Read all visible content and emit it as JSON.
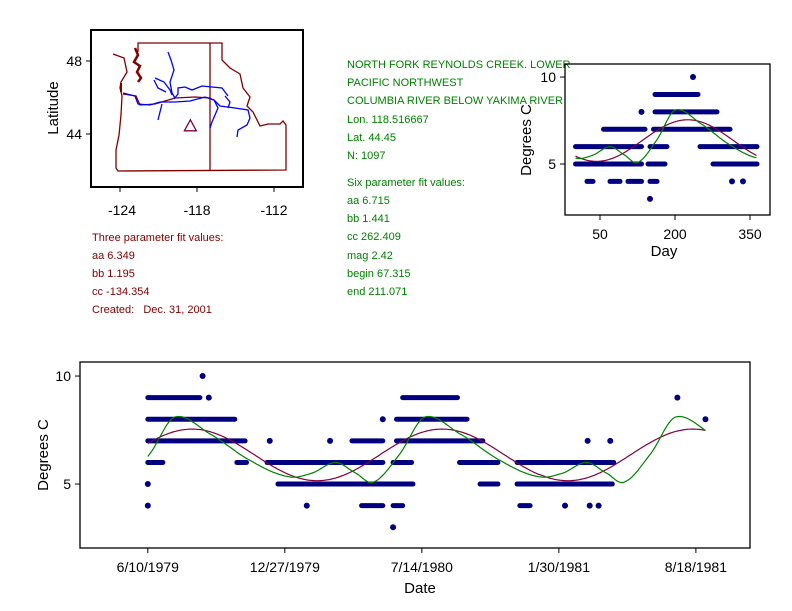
{
  "colors": {
    "observations": "#000080",
    "three_parameter_fit": "#800040",
    "six_parameter_fit": "#008000",
    "map_boundaries": "#800000",
    "map_rivers": "#0000ff",
    "site_info_text": "#008000",
    "three_parameter_text": "#800000"
  },
  "map": {
    "ylabel": "Latitude",
    "x_ticks": [
      "-124",
      "-118",
      "-112"
    ],
    "y_ticks": [
      "48",
      "44"
    ],
    "site_marker": {
      "icon": "triangle-icon",
      "lon": -118.516667,
      "lat": 44.45
    }
  },
  "site_info": {
    "lines": [
      "NORTH FORK REYNOLDS CREEK. LOWER",
      "PACIFIC NORTHWEST",
      "COLUMBIA RIVER BELOW YAKIMA RIVER",
      "Lon. 118.516667",
      "Lat. 44.45",
      "N: 1097"
    ],
    "six_parameter": {
      "title": "Six parameter fit values:",
      "lines": [
        "aa 6.715",
        "bb 1.441",
        "cc 262.409",
        "mag 2.42",
        "begin 67.315",
        "end 211.071"
      ]
    }
  },
  "three_parameter": {
    "title": "Three parameter fit values:",
    "lines": [
      "aa 6.349",
      "bb 1.195",
      "cc -134.354",
      "Created:   Dec. 31, 2001"
    ]
  },
  "chart_data": [
    {
      "type": "scatter",
      "xlabel": "Day",
      "ylabel": "Degrees C",
      "xlim": [
        -20,
        390
      ],
      "ylim": [
        2.07,
        10.75
      ],
      "x_ticks": [
        {
          "value": 50,
          "label": "50"
        },
        {
          "value": 200,
          "label": "200"
        },
        {
          "value": 350,
          "label": "350"
        }
      ],
      "y_ticks": [
        {
          "value": 5,
          "label": "5"
        },
        {
          "value": 10,
          "label": "10"
        }
      ],
      "grid": false,
      "observation_runs": [
        [
          236,
          236,
          10
        ],
        [
          160,
          246,
          9
        ],
        [
          133,
          133,
          8
        ],
        [
          160,
          284,
          8
        ],
        [
          57,
          140,
          7
        ],
        [
          157,
          310,
          7
        ],
        [
          1,
          133,
          6
        ],
        [
          150,
          184,
          6
        ],
        [
          250,
          364,
          6
        ],
        [
          1,
          133,
          5
        ],
        [
          146,
          180,
          5
        ],
        [
          276,
          364,
          5
        ],
        [
          24,
          36,
          4
        ],
        [
          70,
          90,
          4
        ],
        [
          106,
          133,
          4
        ],
        [
          150,
          164,
          4
        ],
        [
          314,
          314,
          4
        ],
        [
          336,
          336,
          4
        ],
        [
          150,
          150,
          3
        ]
      ],
      "fits": [
        {
          "name": "three parameter",
          "aa": 6.349,
          "bb": 1.195,
          "cc": -134.354
        },
        {
          "name": "six parameter",
          "aa": 6.715,
          "bb": 1.441,
          "cc": 262.409,
          "mag": 2.42,
          "begin": 67.315,
          "end": 211.071
        }
      ]
    },
    {
      "type": "scatter",
      "xlabel": "Date",
      "ylabel": "Degrees C",
      "xlim": [
        "1979-03-03",
        "1981-11-05"
      ],
      "ylim": [
        2.04,
        10.65
      ],
      "x_ticks": [
        {
          "value": "1979-06-10",
          "label": "6/10/1979"
        },
        {
          "value": "1979-12-27",
          "label": "12/27/1979"
        },
        {
          "value": "1980-07-14",
          "label": "7/14/1980"
        },
        {
          "value": "1981-01-30",
          "label": "1/30/1981"
        },
        {
          "value": "1981-08-18",
          "label": "8/18/1981"
        }
      ],
      "y_ticks": [
        {
          "value": 5,
          "label": "5"
        },
        {
          "value": 10,
          "label": "10"
        }
      ],
      "grid": false,
      "observation_runs": [
        [
          "1979-08-29",
          "1979-08-29",
          10
        ],
        [
          "1979-06-10",
          "1979-08-25",
          9
        ],
        [
          "1979-09-07",
          "1979-09-07",
          9
        ],
        [
          "1980-06-16",
          "1980-09-04",
          9
        ],
        [
          "1981-07-22",
          "1981-07-22",
          9
        ],
        [
          "1979-06-10",
          "1979-10-15",
          8
        ],
        [
          "1980-05-18",
          "1980-05-18",
          8
        ],
        [
          "1980-06-07",
          "1980-09-18",
          8
        ],
        [
          "1981-09-01",
          "1981-09-01",
          8
        ],
        [
          "1979-06-10",
          "1979-10-30",
          7
        ],
        [
          "1979-12-05",
          "1979-12-05",
          7
        ],
        [
          "1980-03-02",
          "1980-03-02",
          7
        ],
        [
          "1980-04-03",
          "1980-05-18",
          7
        ],
        [
          "1980-06-07",
          "1980-10-11",
          7
        ],
        [
          "1981-03-13",
          "1981-03-13",
          7
        ],
        [
          "1981-04-15",
          "1981-04-15",
          7
        ],
        [
          "1979-06-10",
          "1979-07-02",
          6
        ],
        [
          "1979-10-18",
          "1979-11-01",
          6
        ],
        [
          "1979-12-01",
          "1980-05-18",
          6
        ],
        [
          "1980-06-02",
          "1980-06-29",
          6
        ],
        [
          "1980-09-07",
          "1980-11-02",
          6
        ],
        [
          "1980-11-30",
          "1981-04-20",
          6
        ],
        [
          "1979-06-10",
          "1979-06-10",
          5
        ],
        [
          "1979-12-17",
          "1980-07-01",
          5
        ],
        [
          "1980-10-07",
          "1980-11-02",
          5
        ],
        [
          "1980-11-30",
          "1981-04-18",
          5
        ],
        [
          "1979-06-10",
          "1979-06-10",
          4
        ],
        [
          "1980-01-28",
          "1980-01-28",
          4
        ],
        [
          "1980-04-17",
          "1980-05-18",
          4
        ],
        [
          "1980-06-02",
          "1980-06-16",
          4
        ],
        [
          "1980-12-04",
          "1980-12-19",
          4
        ],
        [
          "1981-02-08",
          "1981-02-08",
          4
        ],
        [
          "1981-03-16",
          "1981-03-16",
          4
        ],
        [
          "1981-03-29",
          "1981-03-29",
          4
        ],
        [
          "1980-06-02",
          "1980-06-02",
          3
        ]
      ],
      "fit_range": [
        "1979-06-10",
        "1981-09-01"
      ]
    }
  ]
}
